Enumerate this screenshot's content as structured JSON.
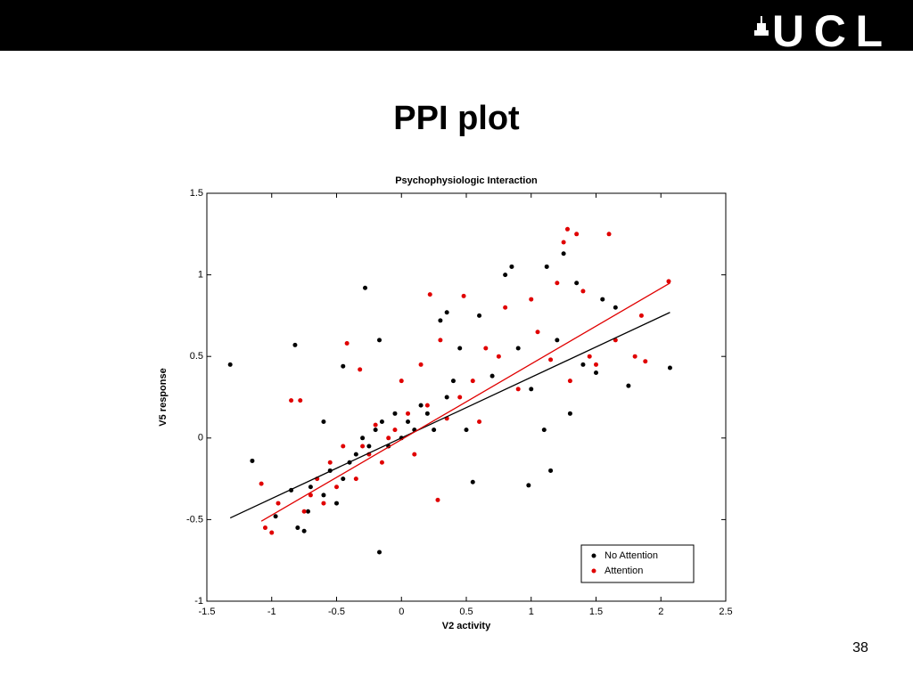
{
  "header": {
    "logo": "UCL"
  },
  "title": "PPI plot",
  "page_number": "38",
  "chart_data": {
    "type": "scatter",
    "title": "Psychophysiologic Interaction",
    "x_label": "V2 activity",
    "y_label": "V5 response",
    "xlim": [
      -1.5,
      2.5
    ],
    "ylim": [
      -1,
      1.5
    ],
    "xticks": [
      -1.5,
      -1,
      -0.5,
      0,
      0.5,
      1,
      1.5,
      2,
      2.5
    ],
    "yticks": [
      -1,
      -0.5,
      0,
      0.5,
      1,
      1.5
    ],
    "grid": false,
    "legend": "lower right",
    "series": [
      {
        "name": "No Attention",
        "color": "#000000",
        "x": [
          -1.32,
          -1.15,
          -0.82,
          -0.45,
          -0.28,
          -0.17,
          -0.17,
          -0.97,
          -0.8,
          -0.75,
          -0.72,
          -0.7,
          -0.6,
          -0.55,
          -0.5,
          -0.45,
          -0.4,
          -0.35,
          -0.3,
          -0.25,
          -0.2,
          -0.15,
          -0.1,
          -0.05,
          0,
          0.05,
          0.1,
          0.15,
          0.2,
          0.25,
          0.3,
          0.35,
          0.45,
          0.5,
          0.55,
          0.6,
          0.7,
          0.8,
          0.85,
          0.9,
          0.98,
          1.0,
          1.1,
          1.12,
          1.15,
          1.25,
          1.3,
          1.4,
          1.5,
          1.55,
          1.65,
          1.75,
          2.07,
          1.2,
          0.4,
          -0.6,
          -0.85,
          0.35,
          1.35
        ],
        "values": [
          0.45,
          -0.14,
          0.57,
          0.44,
          0.92,
          0.6,
          -0.7,
          -0.48,
          -0.55,
          -0.57,
          -0.45,
          -0.3,
          -0.35,
          -0.2,
          -0.4,
          -0.25,
          -0.15,
          -0.1,
          0.0,
          -0.05,
          0.05,
          0.1,
          -0.05,
          0.15,
          0.0,
          0.1,
          0.05,
          0.2,
          0.15,
          0.05,
          0.72,
          0.77,
          0.55,
          0.05,
          -0.27,
          0.75,
          0.38,
          1.0,
          1.05,
          0.55,
          -0.29,
          0.3,
          0.05,
          1.05,
          -0.2,
          1.13,
          0.15,
          0.45,
          0.4,
          0.85,
          0.8,
          0.32,
          0.43,
          0.6,
          0.35,
          0.1,
          -0.32,
          0.25,
          0.95
        ]
      },
      {
        "name": "Attention",
        "color": "#e00000",
        "x": [
          -1.08,
          -1.05,
          -1.0,
          -0.95,
          -0.85,
          -0.78,
          -0.75,
          -0.7,
          -0.65,
          -0.6,
          -0.55,
          -0.5,
          -0.42,
          -0.35,
          -0.32,
          -0.3,
          -0.25,
          -0.2,
          -0.15,
          -0.1,
          -0.05,
          0.0,
          0.05,
          0.1,
          0.15,
          0.2,
          0.22,
          0.28,
          0.35,
          0.45,
          0.48,
          0.55,
          0.65,
          0.75,
          0.8,
          0.9,
          1.0,
          1.05,
          1.15,
          1.2,
          1.25,
          1.28,
          1.35,
          1.4,
          1.45,
          1.5,
          1.6,
          1.65,
          1.8,
          1.85,
          1.88,
          2.06,
          1.3,
          0.6,
          -0.45,
          0.3
        ],
        "values": [
          -0.28,
          -0.55,
          -0.58,
          -0.4,
          0.23,
          0.23,
          -0.45,
          -0.35,
          -0.25,
          -0.4,
          -0.15,
          -0.3,
          0.58,
          -0.25,
          0.42,
          -0.05,
          -0.1,
          0.08,
          -0.15,
          0.0,
          0.05,
          0.35,
          0.15,
          -0.1,
          0.45,
          0.2,
          0.88,
          -0.38,
          0.12,
          0.25,
          0.87,
          0.35,
          0.55,
          0.5,
          0.8,
          0.3,
          0.85,
          0.65,
          0.48,
          0.95,
          1.2,
          1.28,
          1.25,
          0.9,
          0.5,
          0.45,
          1.25,
          0.6,
          0.5,
          0.75,
          0.47,
          0.96,
          0.35,
          0.1,
          -0.05,
          0.6
        ]
      }
    ],
    "fits": [
      {
        "color": "#000000",
        "x": [
          -1.32,
          2.07
        ],
        "values": [
          -0.49,
          0.77
        ]
      },
      {
        "color": "#e00000",
        "x": [
          -1.08,
          2.07
        ],
        "values": [
          -0.51,
          0.95
        ]
      }
    ]
  }
}
